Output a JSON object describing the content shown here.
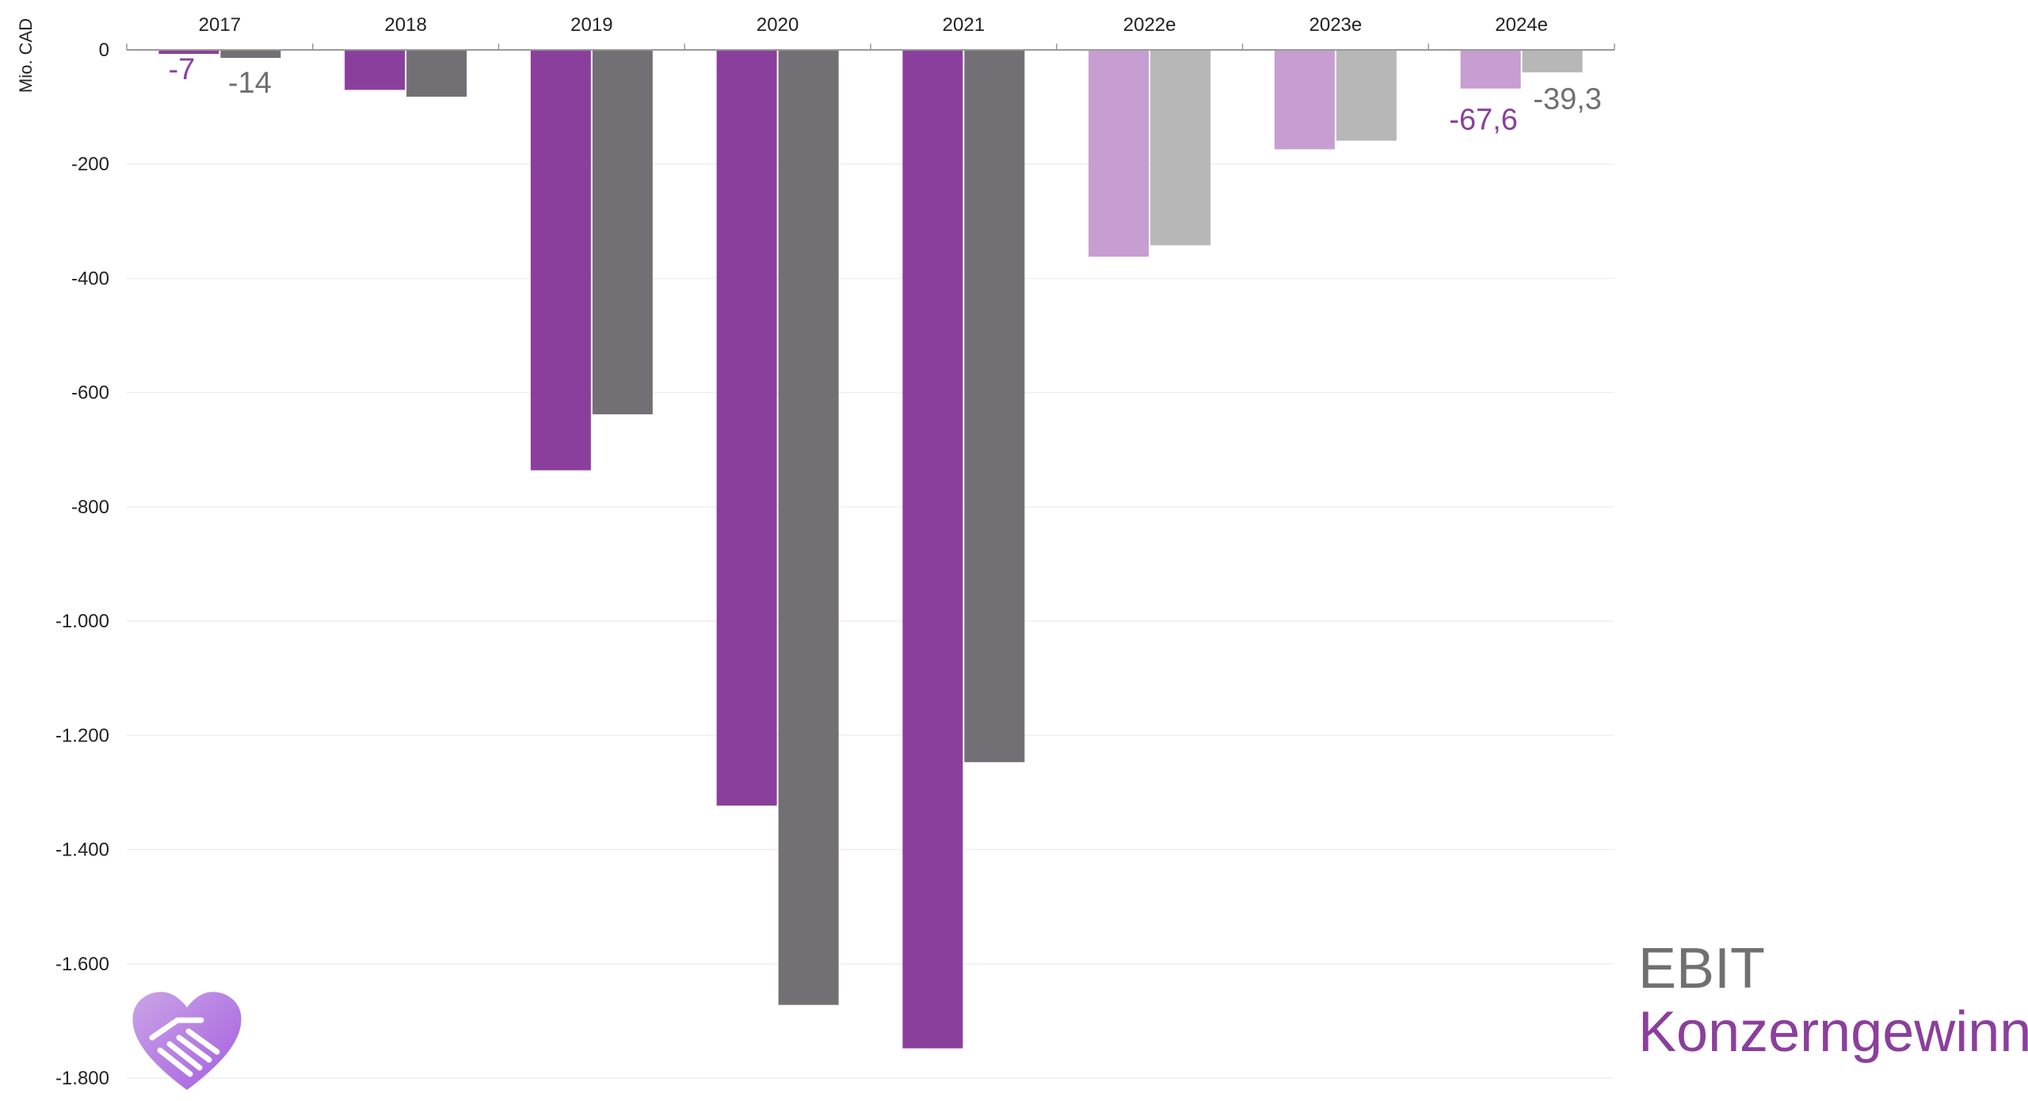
{
  "chart_data": {
    "type": "bar",
    "unit_label": "Mio. CAD",
    "categories": [
      "2017",
      "2018",
      "2019",
      "2020",
      "2021",
      "2022e",
      "2023e",
      "2024e"
    ],
    "estimated_from_index": 5,
    "ylim": [
      -1800,
      0
    ],
    "yticks": [
      0,
      -200,
      -400,
      -600,
      -800,
      -1000,
      -1200,
      -1400,
      -1600,
      -1800
    ],
    "ytick_labels": [
      "0",
      "-200",
      "-400",
      "-600",
      "-800",
      "-1.000",
      "-1.200",
      "-1.400",
      "-1.600",
      "-1.800"
    ],
    "grid": true,
    "series": [
      {
        "name": "Konzerngewinn",
        "color": "#8b3f9c",
        "color_estimate": "#c79ed1",
        "values": [
          -7,
          -70,
          -736,
          -1323,
          -1748,
          -362,
          -174,
          -67.6
        ]
      },
      {
        "name": "EBIT",
        "color": "#727075",
        "color_estimate": "#b7b7b7",
        "values": [
          -14,
          -82,
          -638,
          -1672,
          -1247,
          -342,
          -159,
          -39.3
        ]
      }
    ],
    "data_labels": [
      {
        "category": "2017",
        "series": "Konzerngewinn",
        "text": "-7"
      },
      {
        "category": "2017",
        "series": "EBIT",
        "text": "-14"
      },
      {
        "category": "2024e",
        "series": "Konzerngewinn",
        "text": "-67,6"
      },
      {
        "category": "2024e",
        "series": "EBIT",
        "text": "-39,3"
      }
    ]
  },
  "legend": {
    "ebit": "EBIT",
    "konzerngewinn": "Konzerngewinn",
    "ebit_color": "#707070",
    "konzerngewinn_color": "#8b3f9c"
  },
  "logo": {
    "icon": "heart-handshake-icon"
  }
}
